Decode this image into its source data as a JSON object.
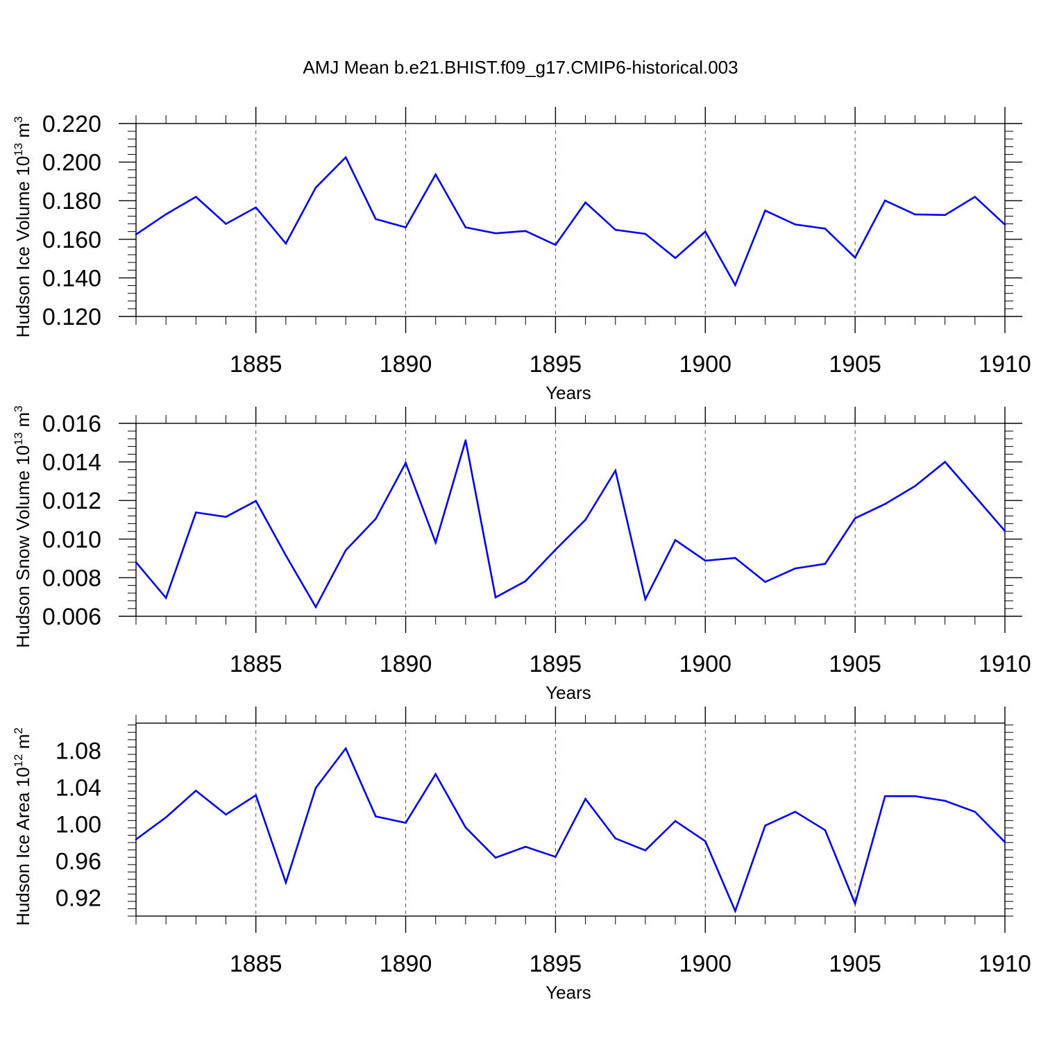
{
  "title": "AMJ Mean b.e21.BHIST.f09_g17.CMIP6-historical.003",
  "line_color": "#0000ff",
  "chart_data": [
    {
      "type": "line",
      "xlabel": "Years",
      "ylabel": "Hudson Ice Volume 10",
      "ylabel_exp": "13",
      "ylabel_unit": " m",
      "ylabel_unit_exp": "3",
      "xlim": [
        1881,
        1910
      ],
      "ylim": [
        0.12,
        0.22
      ],
      "y_major_ticks": [
        "0.120",
        "0.140",
        "0.160",
        "0.180",
        "0.200",
        "0.220"
      ],
      "x_ticks": [
        "1885",
        "1890",
        "1895",
        "1900",
        "1905",
        "1910"
      ],
      "x": [
        1881,
        1882,
        1883,
        1884,
        1885,
        1886,
        1887,
        1888,
        1889,
        1890,
        1891,
        1892,
        1893,
        1894,
        1895,
        1896,
        1897,
        1898,
        1899,
        1900,
        1901,
        1902,
        1903,
        1904,
        1905,
        1906,
        1907,
        1908,
        1909,
        1910
      ],
      "series": [
        {
          "values": [
            0.1625,
            0.173,
            0.182,
            0.168,
            0.1765,
            0.1578,
            0.1868,
            0.2025,
            0.1705,
            0.1662,
            0.1936,
            0.1662,
            0.1631,
            0.1643,
            0.1571,
            0.1791,
            0.1649,
            0.1628,
            0.1503,
            0.164,
            0.1363,
            0.1749,
            0.1677,
            0.1655,
            0.1505,
            0.1801,
            0.1729,
            0.1726,
            0.182,
            0.1676
          ]
        }
      ]
    },
    {
      "type": "line",
      "xlabel": "Years",
      "ylabel": "Hudson Snow Volume 10",
      "ylabel_exp": "13",
      "ylabel_unit": " m",
      "ylabel_unit_exp": "3",
      "xlim": [
        1881,
        1910
      ],
      "ylim": [
        0.006,
        0.016
      ],
      "y_major_ticks": [
        "0.006",
        "0.008",
        "0.010",
        "0.012",
        "0.014",
        "0.016"
      ],
      "x_ticks": [
        "1885",
        "1890",
        "1895",
        "1900",
        "1905",
        "1910"
      ],
      "x": [
        1881,
        1882,
        1883,
        1884,
        1885,
        1886,
        1887,
        1888,
        1889,
        1890,
        1891,
        1892,
        1893,
        1894,
        1895,
        1896,
        1897,
        1898,
        1899,
        1900,
        1901,
        1902,
        1903,
        1904,
        1905,
        1906,
        1907,
        1908,
        1909,
        1910
      ],
      "series": [
        {
          "values": [
            0.0088,
            0.00695,
            0.01138,
            0.01115,
            0.01198,
            0.00915,
            0.00648,
            0.00942,
            0.01105,
            0.01395,
            0.00982,
            0.01512,
            0.00698,
            0.00782,
            0.00945,
            0.011,
            0.01355,
            0.00688,
            0.00995,
            0.00888,
            0.00902,
            0.00778,
            0.00848,
            0.00872,
            0.01108,
            0.01182,
            0.01275,
            0.014,
            0.01222,
            0.01042
          ]
        }
      ]
    },
    {
      "type": "line",
      "xlabel": "Years",
      "ylabel": "Hudson Ice Area 10",
      "ylabel_exp": "12",
      "ylabel_unit": " m",
      "ylabel_unit_exp": "2",
      "xlim": [
        1881,
        1910
      ],
      "ylim": [
        0.9,
        1.11
      ],
      "y_major_ticks": [
        "0.92",
        "0.96",
        "1.00",
        "1.04",
        "1.08"
      ],
      "x_ticks": [
        "1885",
        "1890",
        "1895",
        "1900",
        "1905",
        "1910"
      ],
      "x": [
        1881,
        1882,
        1883,
        1884,
        1885,
        1886,
        1887,
        1888,
        1889,
        1890,
        1891,
        1892,
        1893,
        1894,
        1895,
        1896,
        1897,
        1898,
        1899,
        1900,
        1901,
        1902,
        1903,
        1904,
        1905,
        1906,
        1907,
        1908,
        1909,
        1910
      ],
      "series": [
        {
          "values": [
            0.9835,
            1.0075,
            1.0365,
            1.0105,
            1.0315,
            0.9365,
            1.0395,
            1.0825,
            1.0085,
            1.0015,
            1.0545,
            0.9965,
            0.9635,
            0.9755,
            0.9645,
            1.0275,
            0.9845,
            0.9715,
            1.0035,
            0.9815,
            0.9055,
            0.9985,
            1.0135,
            0.9935,
            0.9135,
            1.0305,
            1.0305,
            1.0255,
            1.0135,
            0.9805
          ]
        }
      ]
    }
  ]
}
